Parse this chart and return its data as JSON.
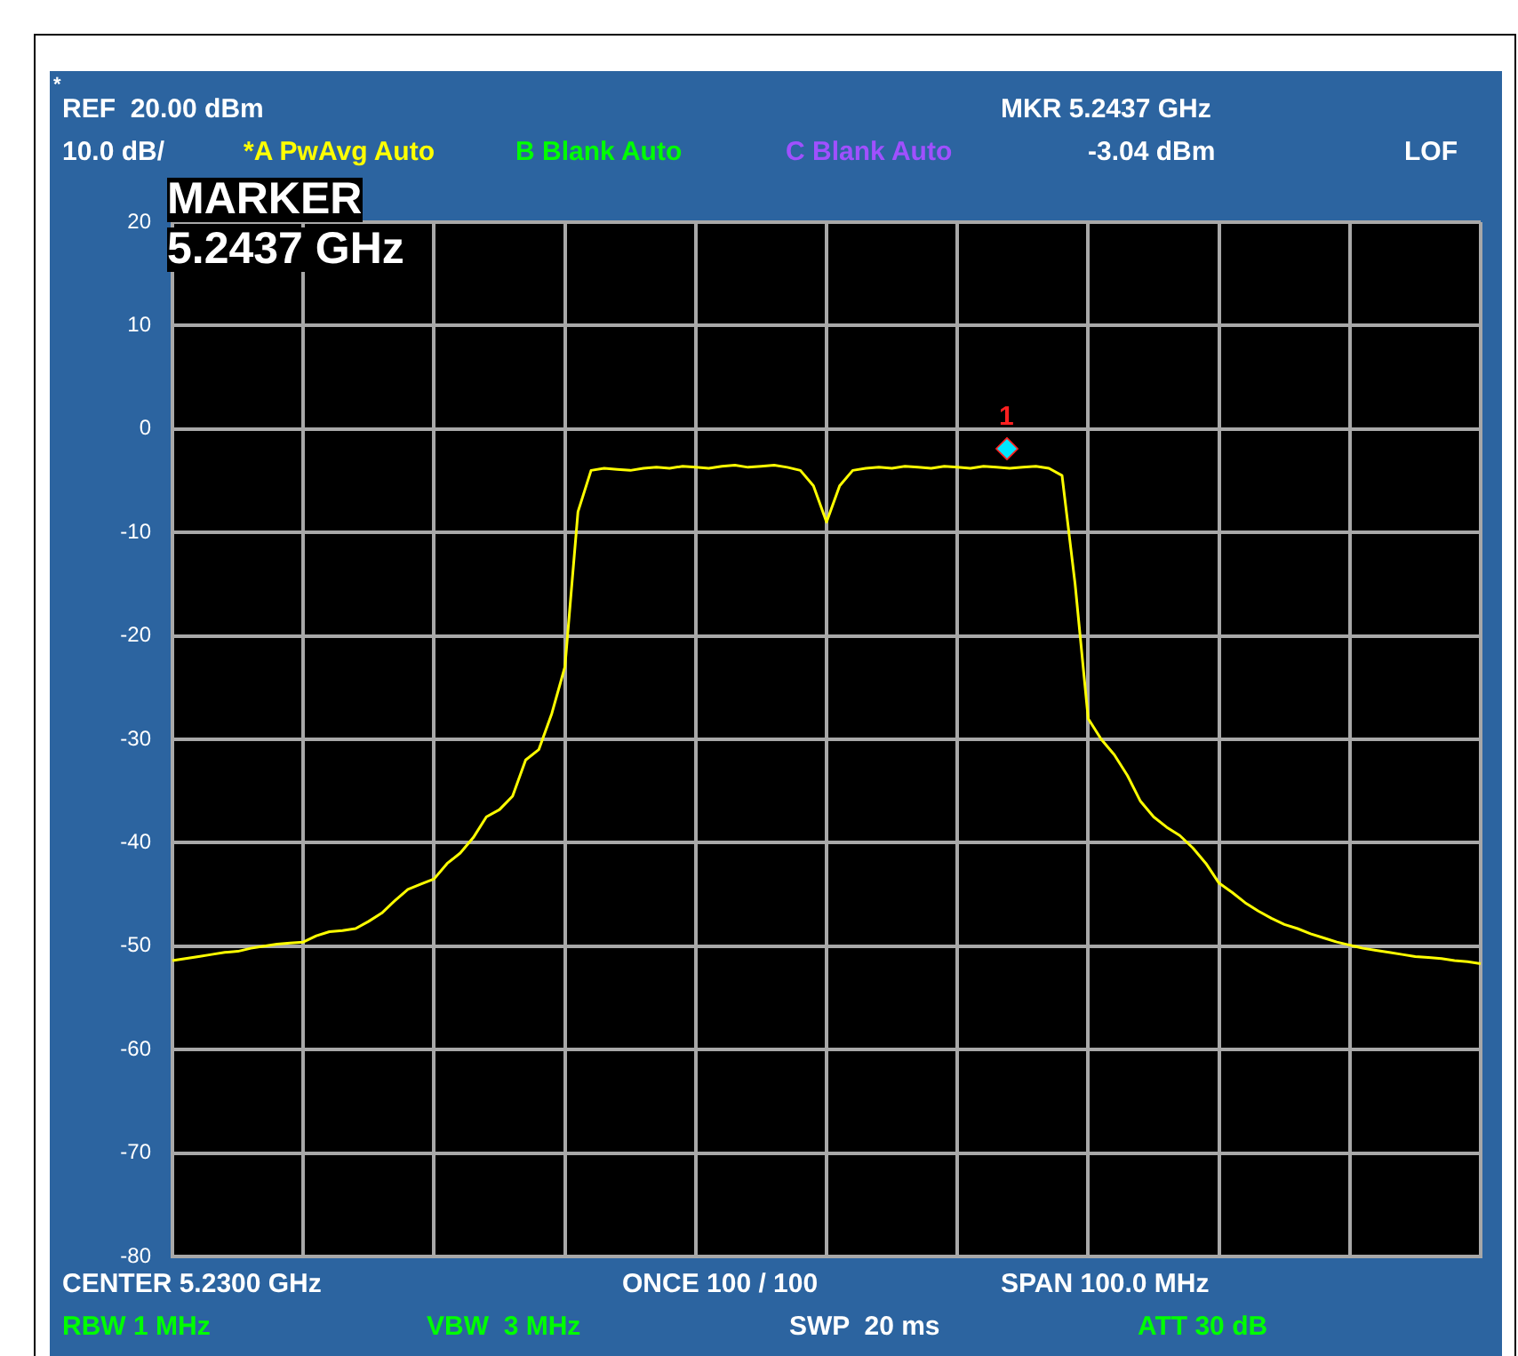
{
  "chart_data": {
    "type": "line",
    "grid": true,
    "tick_labels": "y",
    "line_style": "solid",
    "marker": "none",
    "categories": [
      null,
      null,
      null,
      null,
      null,
      null,
      null,
      null,
      null,
      null,
      null,
      null,
      null,
      null,
      null,
      null,
      null,
      null,
      null,
      null,
      null,
      null,
      null,
      null,
      null,
      null,
      null,
      null,
      null,
      null,
      null,
      null,
      null,
      null,
      null,
      null,
      null,
      null,
      null,
      null,
      null,
      null,
      null,
      null,
      null,
      null,
      null,
      null,
      null,
      null,
      null,
      null,
      null,
      null,
      null,
      null,
      null,
      null,
      null,
      null,
      null,
      null,
      null,
      null,
      null,
      null,
      null,
      null,
      null,
      null,
      null,
      null,
      null,
      null,
      null,
      null,
      null,
      null,
      null,
      null,
      null,
      null,
      null,
      null,
      null,
      null,
      null,
      null,
      null,
      null,
      null,
      null,
      null,
      null,
      null,
      null,
      null,
      null,
      null,
      null,
      null
    ],
    "ylim": [
      -80,
      20
    ],
    "yticks": [
      20,
      10,
      0,
      -10,
      -20,
      -30,
      -40,
      -50,
      -60,
      -70,
      -80
    ],
    "series": [
      {
        "color": "#ffff00",
        "values": [
          -51.4,
          -51.2,
          -51.0,
          -50.8,
          -50.6,
          -50.5,
          -50.2,
          -50.0,
          -49.8,
          -49.7,
          -49.6,
          -49.0,
          -48.6,
          -48.5,
          -48.3,
          -47.6,
          -46.8,
          -45.6,
          -44.5,
          -44.0,
          -43.5,
          -42.0,
          -41.0,
          -39.5,
          -37.5,
          -36.8,
          -35.5,
          -32.0,
          -31.0,
          -27.5,
          -23.0,
          -8.0,
          -4.0,
          -3.8,
          -3.9,
          -4.0,
          -3.8,
          -3.7,
          -3.8,
          -3.6,
          -3.7,
          -3.8,
          -3.6,
          -3.5,
          -3.7,
          -3.6,
          -3.5,
          -3.7,
          -4.0,
          -5.5,
          -9.0,
          -5.5,
          -4.0,
          -3.8,
          -3.7,
          -3.8,
          -3.6,
          -3.7,
          -3.8,
          -3.6,
          -3.7,
          -3.8,
          -3.6,
          -3.7,
          -3.8,
          -3.7,
          -3.6,
          -3.8,
          -4.5,
          -15.0,
          -28.0,
          -30.0,
          -31.5,
          -33.5,
          -36.0,
          -37.5,
          -38.5,
          -39.3,
          -40.5,
          -42.0,
          -43.9,
          -44.8,
          -45.8,
          -46.6,
          -47.3,
          -47.9,
          -48.3,
          -48.8,
          -49.2,
          -49.6,
          -49.9,
          -50.2,
          -50.4,
          -50.6,
          -50.8,
          -51.0,
          -51.1,
          -51.2,
          -51.4,
          -51.5,
          -51.7
        ]
      }
    ],
    "annotations": [
      "*",
      "REF  20.00 dBm",
      "10.0 dB/",
      "*A PwAvg Auto",
      "B Blank Auto",
      "C Blank Auto",
      "MKR 5.2437 GHz",
      "-3.04 dBm",
      "LOF",
      "MARKER",
      "5.2437 GHz",
      "1",
      "CENTER 5.2300 GHz",
      "ONCE 100 / 100",
      "SPAN 100.0 MHz",
      "RBW 1 MHz",
      "VBW  3 MHz",
      "SWP  20 ms",
      "ATT 30 dB"
    ]
  }
}
